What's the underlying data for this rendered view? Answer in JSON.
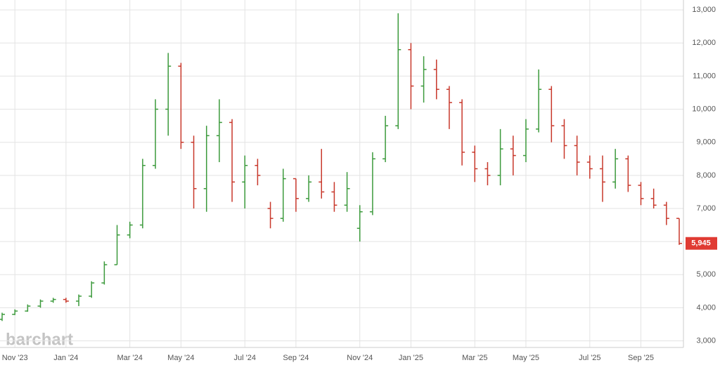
{
  "chart_data": {
    "type": "ohlc",
    "watermark": "barchart",
    "categories": [
      null,
      "Nov '23",
      null,
      null,
      null,
      "Jan '24",
      null,
      null,
      null,
      null,
      "Mar '24",
      null,
      null,
      null,
      "May '24",
      null,
      null,
      null,
      null,
      "Jul '24",
      null,
      null,
      null,
      "Sep '24",
      null,
      null,
      null,
      null,
      "Nov '24",
      null,
      null,
      null,
      "Jan '25",
      null,
      null,
      null,
      null,
      "Mar '25",
      null,
      null,
      null,
      "May '25",
      null,
      null,
      null,
      null,
      "Jul '25",
      null,
      null,
      null,
      "Sep '25",
      null,
      null,
      null
    ],
    "open": [
      3650,
      3800,
      3900,
      4050,
      4200,
      4250,
      4200,
      4350,
      4750,
      5300,
      6200,
      6500,
      8300,
      10000,
      11300,
      9000,
      7600,
      9200,
      9600,
      7800,
      8300,
      7000,
      6700,
      7900,
      7300,
      7800,
      7500,
      7100,
      6400,
      6900,
      8500,
      9500,
      11800,
      10700,
      11200,
      10600,
      10200,
      8700,
      8200,
      8000,
      8800,
      8600,
      9400,
      10600,
      9500,
      8900,
      8400,
      8200,
      7800,
      8500,
      7700,
      7300,
      7100,
      6700
    ],
    "high": [
      3850,
      3950,
      4100,
      4250,
      4300,
      4300,
      4400,
      4800,
      5400,
      6500,
      6600,
      8500,
      10300,
      11700,
      11400,
      9200,
      9500,
      10300,
      9700,
      8600,
      8500,
      7200,
      8200,
      7900,
      8000,
      8800,
      7800,
      8100,
      7100,
      8700,
      9800,
      12900,
      12000,
      11600,
      11500,
      10700,
      10300,
      8900,
      8400,
      9400,
      9200,
      9700,
      11200,
      10700,
      9700,
      9200,
      8600,
      8600,
      8800,
      8600,
      7800,
      7600,
      7200,
      6700
    ],
    "low": [
      3600,
      3780,
      3880,
      4000,
      4150,
      4150,
      4050,
      4300,
      4700,
      5300,
      6100,
      6400,
      8200,
      9200,
      8800,
      7000,
      6900,
      8400,
      7200,
      7000,
      7700,
      6400,
      6600,
      6900,
      7200,
      7300,
      6900,
      6900,
      6000,
      6800,
      8400,
      9400,
      10000,
      10200,
      10300,
      9400,
      8300,
      7800,
      7700,
      7700,
      8000,
      8400,
      9300,
      9000,
      8500,
      8000,
      7900,
      7200,
      7600,
      7500,
      7100,
      7000,
      6500,
      5900
    ],
    "close": [
      3800,
      3900,
      4050,
      4200,
      4250,
      4200,
      4350,
      4750,
      5300,
      6200,
      6500,
      8300,
      10000,
      11300,
      9000,
      7600,
      9200,
      9600,
      7800,
      8300,
      8000,
      6700,
      7900,
      7300,
      7800,
      7500,
      7100,
      7600,
      6900,
      8500,
      9500,
      11800,
      10700,
      11200,
      10600,
      10200,
      8700,
      8200,
      8000,
      8800,
      8600,
      9400,
      10600,
      9500,
      8900,
      8400,
      8200,
      7800,
      8500,
      7700,
      7300,
      7100,
      6700,
      5945
    ],
    "up_color": "#3c9a3c",
    "down_color": "#c8382b",
    "last_price": {
      "value": 5945,
      "label": "5,945"
    },
    "last_price_color": "#e03b33",
    "ylim": [
      2800,
      13300
    ],
    "yticks": [
      {
        "value": 3000,
        "label": "3,000"
      },
      {
        "value": 4000,
        "label": "4,000"
      },
      {
        "value": 5000,
        "label": "5,000"
      },
      {
        "value": 6000,
        "label": "6,000"
      },
      {
        "value": 7000,
        "label": "7,000"
      },
      {
        "value": 8000,
        "label": "8,000"
      },
      {
        "value": 9000,
        "label": "9,000"
      },
      {
        "value": 10000,
        "label": "10,000"
      },
      {
        "value": 11000,
        "label": "11,000"
      },
      {
        "value": 12000,
        "label": "12,000"
      },
      {
        "value": 13000,
        "label": "13,000"
      }
    ],
    "grid": true
  }
}
